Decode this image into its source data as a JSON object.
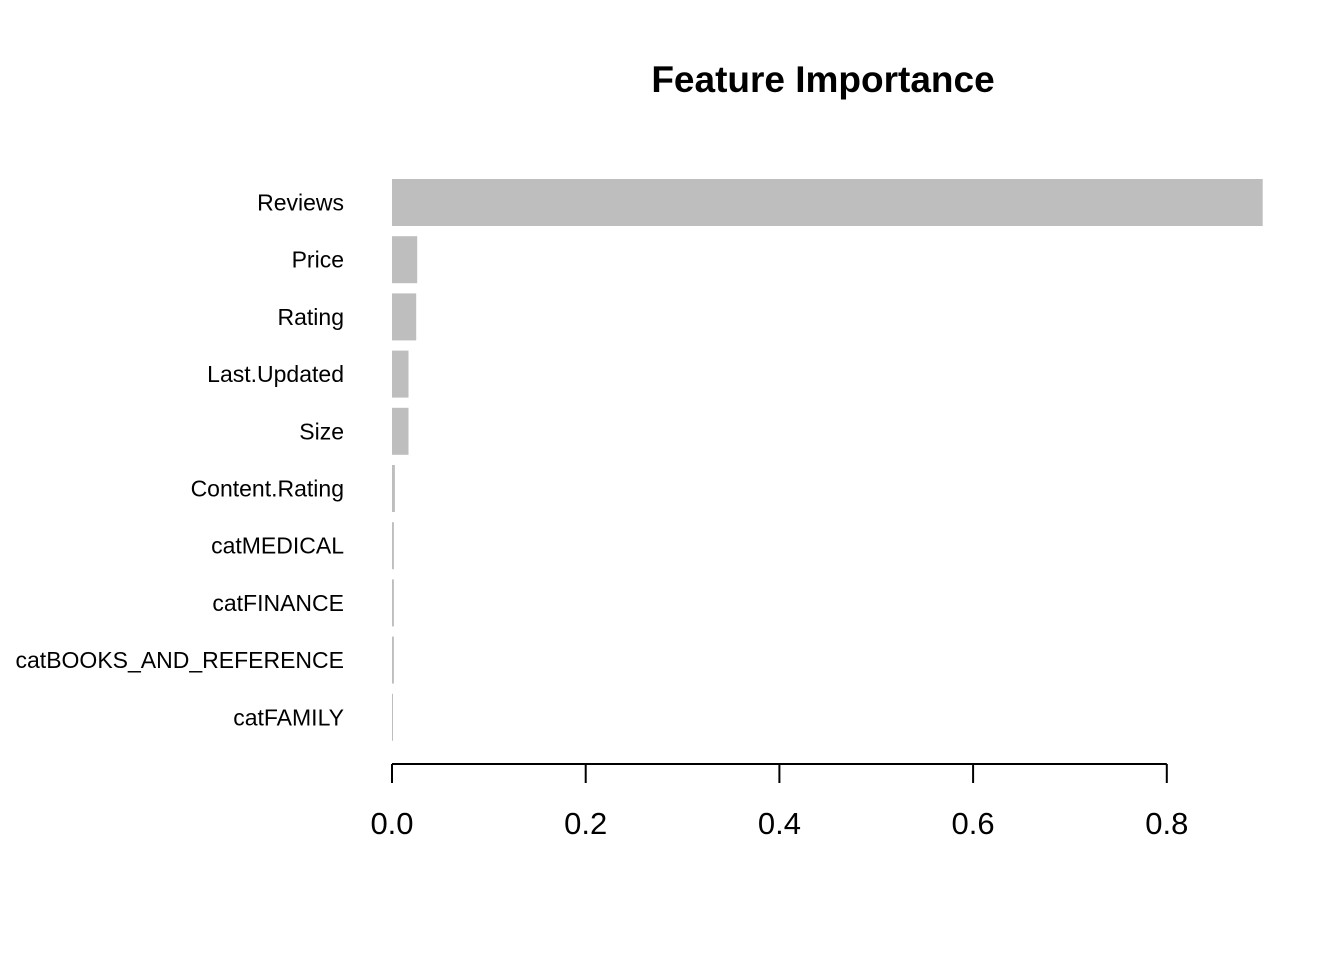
{
  "chart_data": {
    "type": "bar",
    "orientation": "horizontal",
    "title": "Feature Importance",
    "xlabel": "",
    "ylabel": "",
    "categories": [
      "Reviews",
      "Price",
      "Rating",
      "Last.Updated",
      "Size",
      "Content.Rating",
      "catMEDICAL",
      "catFINANCE",
      "catBOOKS_AND_REFERENCE",
      "catFAMILY"
    ],
    "values": [
      0.899,
      0.026,
      0.025,
      0.017,
      0.017,
      0.003,
      0.002,
      0.002,
      0.002,
      0.001
    ],
    "xlim": [
      0,
      0.899
    ],
    "xticks": [
      0.0,
      0.2,
      0.4,
      0.6,
      0.8
    ],
    "xtick_labels": [
      "0.0",
      "0.2",
      "0.4",
      "0.6",
      "0.8"
    ],
    "bar_color": "#bebebe",
    "grid": false,
    "legend": "none"
  }
}
